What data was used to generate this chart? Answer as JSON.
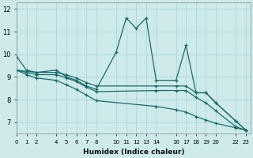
{
  "xlabel": "Humidex (Indice chaleur)",
  "ylabel": "",
  "background_color": "#ceeaea",
  "grid_color": "#a8d4d4",
  "line_color": "#1a6b6b",
  "xlim": [
    0,
    23.5
  ],
  "ylim": [
    6.5,
    12.3
  ],
  "yticks": [
    7,
    8,
    9,
    10,
    11,
    12
  ],
  "xtick_labels": [
    "0",
    "1",
    "2",
    "4",
    "5",
    "6",
    "7",
    "8",
    "10",
    "11",
    "12",
    "13",
    "14",
    "16",
    "17",
    "18",
    "19",
    "20",
    "22",
    "23"
  ],
  "xtick_positions": [
    0,
    1,
    2,
    4,
    5,
    6,
    7,
    8,
    10,
    11,
    12,
    13,
    14,
    16,
    17,
    18,
    19,
    20,
    22,
    23
  ],
  "lines": [
    {
      "x": [
        0,
        1,
        2,
        4,
        5,
        6,
        7,
        8,
        10,
        11,
        12,
        13,
        14,
        16,
        17,
        18,
        19,
        20,
        22,
        23
      ],
      "y": [
        9.9,
        9.3,
        9.2,
        9.3,
        9.0,
        8.85,
        8.6,
        8.45,
        10.1,
        11.6,
        11.15,
        11.6,
        8.85,
        8.85,
        10.4,
        8.3,
        8.3,
        7.85,
        7.05,
        6.65
      ]
    },
    {
      "x": [
        0,
        1,
        2,
        4,
        5,
        6,
        7,
        8,
        14,
        16,
        17,
        18,
        19,
        20,
        22,
        23
      ],
      "y": [
        9.3,
        9.25,
        9.2,
        9.2,
        9.1,
        8.95,
        8.75,
        8.6,
        8.6,
        8.6,
        8.6,
        8.3,
        8.3,
        7.85,
        7.05,
        6.65
      ]
    },
    {
      "x": [
        0,
        1,
        2,
        4,
        5,
        6,
        7,
        8,
        14,
        16,
        17,
        18,
        19,
        20,
        22,
        23
      ],
      "y": [
        9.3,
        9.2,
        9.1,
        9.1,
        8.95,
        8.8,
        8.55,
        8.35,
        8.4,
        8.4,
        8.4,
        8.1,
        7.85,
        7.5,
        6.8,
        6.65
      ]
    },
    {
      "x": [
        0,
        1,
        2,
        4,
        5,
        6,
        7,
        8,
        14,
        16,
        17,
        18,
        19,
        20,
        22,
        23
      ],
      "y": [
        9.3,
        9.1,
        8.95,
        8.85,
        8.65,
        8.45,
        8.2,
        7.95,
        7.7,
        7.55,
        7.45,
        7.25,
        7.1,
        6.95,
        6.75,
        6.65
      ]
    }
  ]
}
